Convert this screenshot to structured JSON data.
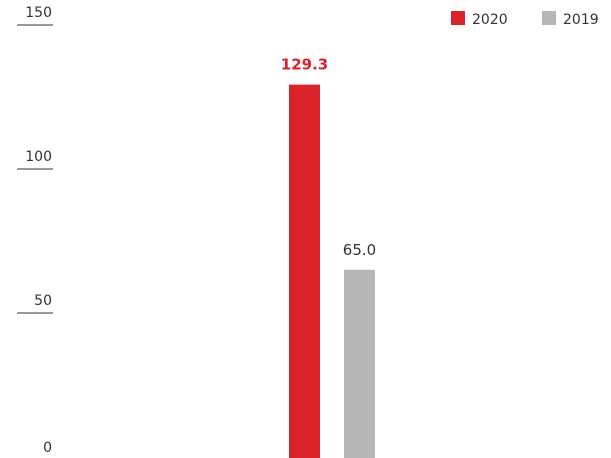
{
  "colors": {
    "2020": "#d9222a",
    "2019": "#b7b5b8",
    "text": "#333333",
    "tick_line": "#333333"
  },
  "chart_data": {
    "type": "bar",
    "categories": [
      ""
    ],
    "series": [
      {
        "name": "2020",
        "values": [
          129.3
        ],
        "value_label": "129.3"
      },
      {
        "name": "2019",
        "values": [
          65.0
        ],
        "value_label": "65.0"
      }
    ],
    "y_ticks": [
      "0",
      "50",
      "100",
      "150"
    ],
    "ylim": [
      0,
      150
    ],
    "grid": false,
    "legend_position": "top-right",
    "title": "",
    "xlabel": "",
    "ylabel": ""
  }
}
